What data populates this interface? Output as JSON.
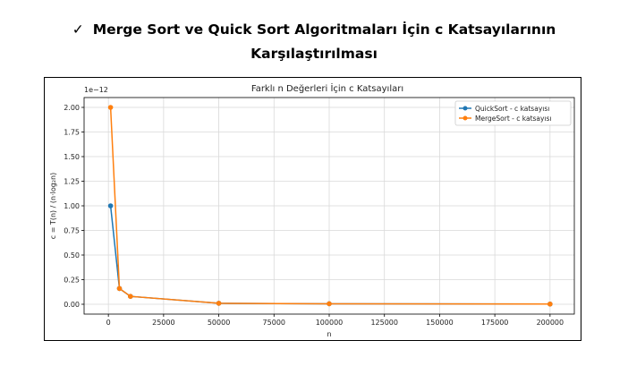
{
  "slide": {
    "check_mark": "✓",
    "title_line1": "Merge Sort ve Quick Sort Algoritmaları İçin c Katsayılarının",
    "title_line2": "Karşılaştırılması"
  },
  "chart_data": {
    "type": "line",
    "title": "Farklı n Değerleri İçin c Katsayıları",
    "xlabel": "n",
    "ylabel": "c = T(n) / (n·log₂n)",
    "y_scale_note": "1e−12",
    "xlim": [
      -11000,
      211000
    ],
    "ylim": [
      -0.1,
      2.1
    ],
    "x_ticks": [
      0,
      25000,
      50000,
      75000,
      100000,
      125000,
      150000,
      175000,
      200000
    ],
    "y_ticks": [
      0.0,
      0.25,
      0.5,
      0.75,
      1.0,
      1.25,
      1.5,
      1.75,
      2.0
    ],
    "grid": true,
    "legend_position": "top-right",
    "series": [
      {
        "name": "QuickSort - c katsayısı",
        "color": "#1f77b4",
        "x": [
          1000,
          5000,
          10000,
          50000,
          100000,
          200000
        ],
        "y": [
          1.0,
          0.16,
          0.08,
          0.01,
          0.005,
          0.002
        ]
      },
      {
        "name": "MergeSort - c katsayısı",
        "color": "#ff7f0e",
        "x": [
          1000,
          5000,
          10000,
          50000,
          100000,
          200000
        ],
        "y": [
          2.0,
          0.16,
          0.08,
          0.01,
          0.005,
          0.002
        ]
      }
    ]
  }
}
